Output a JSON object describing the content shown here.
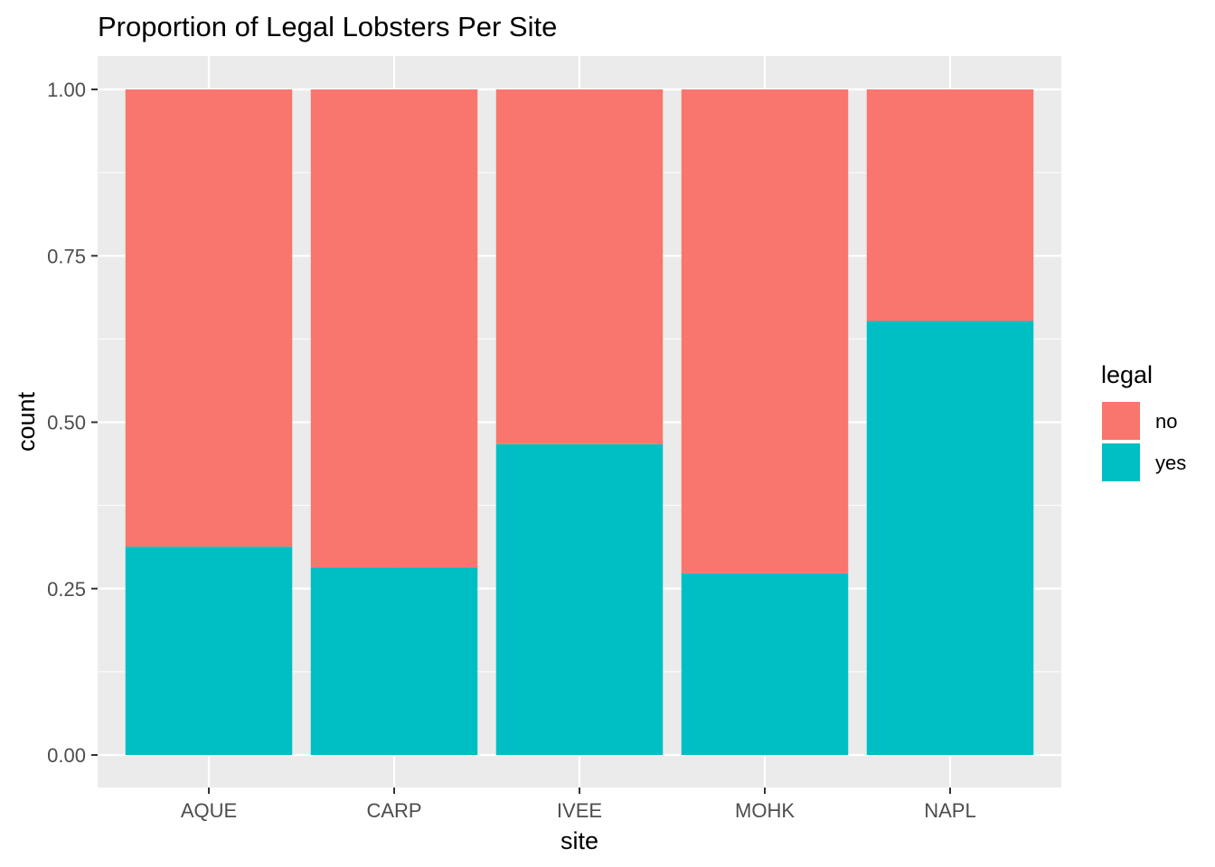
{
  "chart_data": {
    "type": "bar",
    "stacked": true,
    "position": "fill",
    "title": "Proportion of Legal Lobsters Per Site",
    "xlabel": "site",
    "ylabel": "count",
    "categories": [
      "AQUE",
      "CARP",
      "IVEE",
      "MOHK",
      "NAPL"
    ],
    "series": [
      {
        "name": "no",
        "color": "#F8766D",
        "values": [
          0.687,
          0.718,
          0.533,
          0.727,
          0.348
        ]
      },
      {
        "name": "yes",
        "color": "#00BFC4",
        "values": [
          0.313,
          0.282,
          0.467,
          0.273,
          0.652
        ]
      }
    ],
    "ylim": [
      0,
      1
    ],
    "yticks": [
      "0.00",
      "0.25",
      "0.50",
      "0.75",
      "1.00"
    ],
    "ytick_values": [
      0,
      0.25,
      0.5,
      0.75,
      1
    ],
    "grid": true,
    "legend": {
      "title": "legal",
      "position": "right",
      "entries": [
        "no",
        "yes"
      ]
    },
    "colors": {
      "panel_background": "#EBEBEB",
      "grid": "#FFFFFF"
    }
  }
}
